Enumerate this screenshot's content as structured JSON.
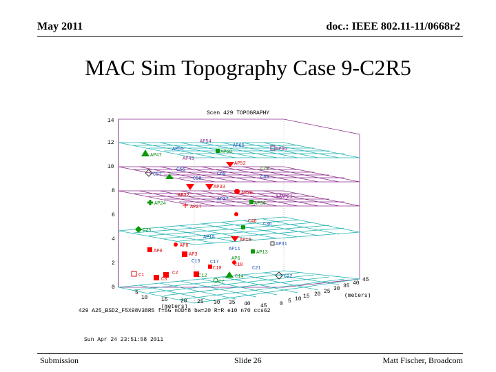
{
  "header": {
    "date": "May 2011",
    "doc_id": "doc.: IEEE 802.11-11/0668r2"
  },
  "slide": {
    "title": "MAC Sim Topography Case 9-C2R5"
  },
  "figure": {
    "plot_title": "Scen 429 TOPOGRAPHY",
    "z_ticks": [
      "0",
      "2",
      "4",
      "6",
      "8",
      "10",
      "12",
      "14"
    ],
    "x_ticks": [
      "5",
      "10",
      "15",
      "20",
      "25",
      "30",
      "35",
      "40",
      "45"
    ],
    "x_label": "(meters)",
    "y_ticks": [
      "0",
      "5",
      "10",
      "15",
      "20",
      "25",
      "30",
      "35",
      "40",
      "45"
    ],
    "y_label": "(meters)",
    "param_line": "429 A25_BSD2_F5X98V38R5 f=5G nOD=8 bw=20 R=R  e10 n70 ccs62",
    "timestamp": "Sun Apr 24 23:51:58 2011",
    "colors": {
      "cyan": "#22b3b3",
      "purple": "#8a2b8a",
      "red": "#ff0000",
      "green": "#0a9a0a"
    },
    "labels": {
      "ap54": "AP54",
      "ap65": "AP65",
      "ap55": "AP55",
      "ap66": "AP66",
      "ap60": "AP60",
      "ap47": "AP47",
      "ap49": "AP49",
      "ap52": "AP52",
      "c56": "C56",
      "c58": "C58",
      "c57": "C57",
      "c70": "C70",
      "c60": "C60",
      "c69": "C69",
      "ap33": "AP33",
      "ap32": "AP32",
      "ap30": "AP30",
      "ap21": "AP21",
      "ap24": "AP24",
      "ap27": "AP27",
      "ap36": "AP36",
      "ap37": "AP37",
      "c25": "C25",
      "c46": "C46",
      "c36": "C36",
      "ap15": "AP15",
      "ap18": "AP18",
      "ap8": "AP8",
      "ap0": "AP0",
      "ap11": "AP11",
      "ap31": "AP31",
      "ap13": "AP13",
      "ap3": "AP3",
      "c15": "C15",
      "c17": "C17",
      "c18": "C18",
      "ap6": "AP6",
      "c10": "C10",
      "c21": "C21",
      "c1": "C1",
      "c3": "C3",
      "c2": "C2",
      "c12": "C12",
      "c14": "C14",
      "c7": "C7",
      "c22": "C22"
    }
  },
  "footer": {
    "left": "Submission",
    "center": "Slide 26",
    "right": "Matt Fischer, Broadcom"
  }
}
